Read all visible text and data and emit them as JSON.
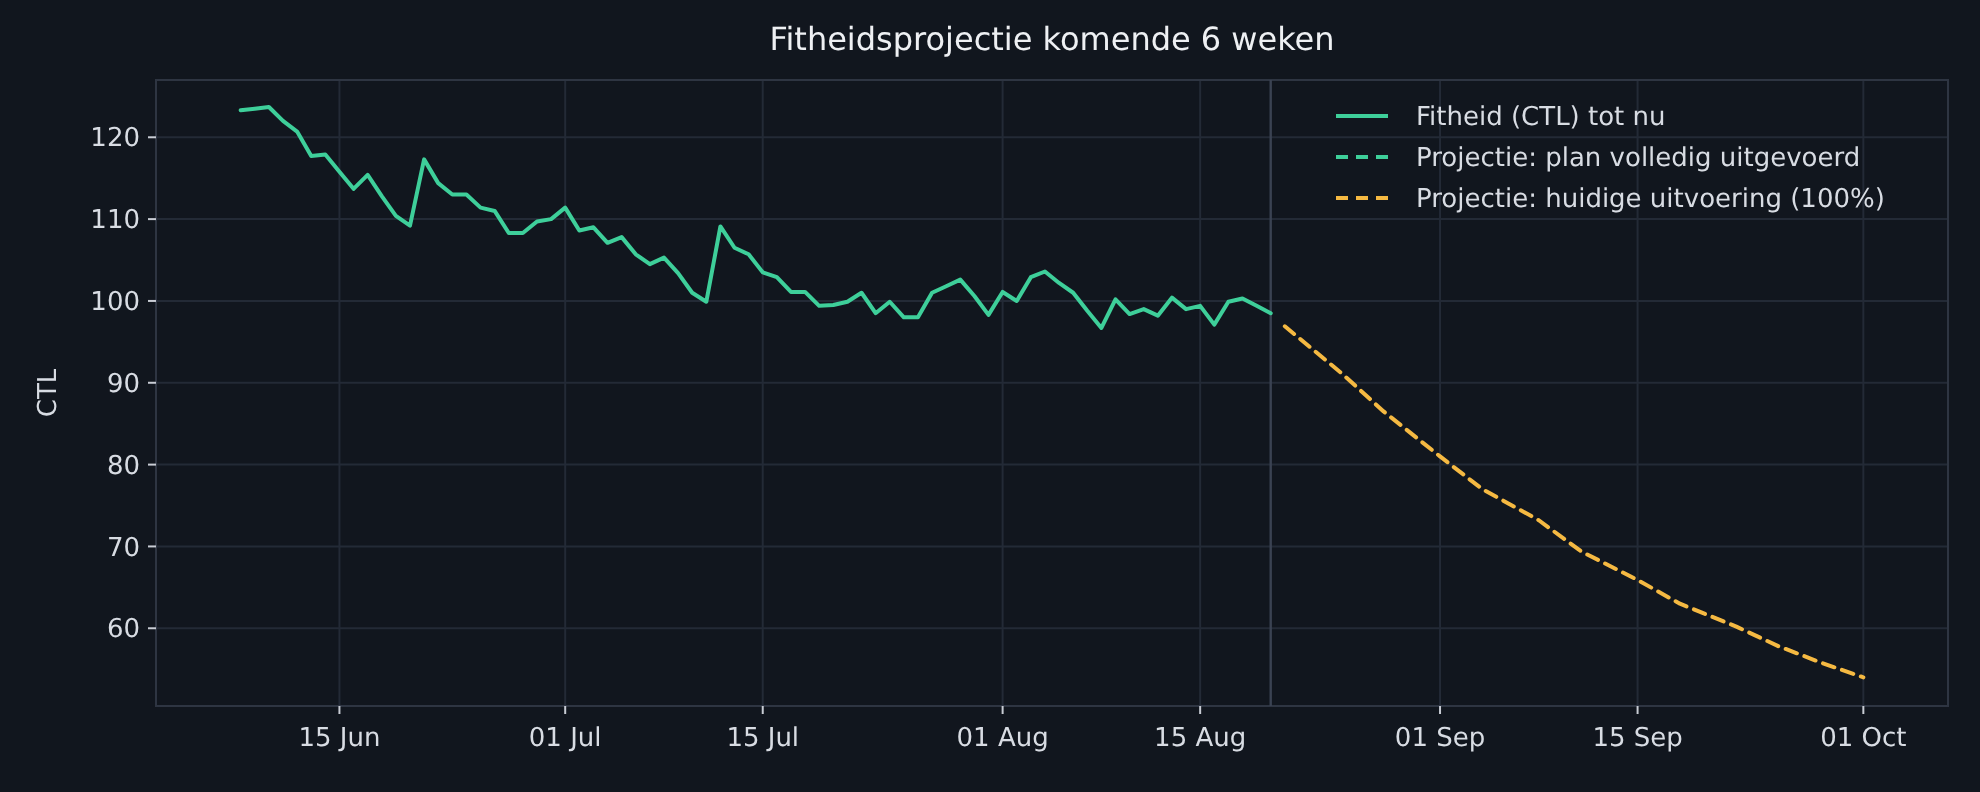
{
  "chart_data": {
    "type": "line",
    "title": "Fitheidsprojectie komende 6 weken",
    "ylabel": "CTL",
    "xlim": [
      "--06-02",
      "--10-07"
    ],
    "ylim": [
      50.5,
      127
    ],
    "yticks": [
      60,
      70,
      80,
      90,
      100,
      110,
      120
    ],
    "xticks": [
      {
        "value": "--06-15",
        "label": "15 Jun"
      },
      {
        "value": "--07-01",
        "label": "01 Jul"
      },
      {
        "value": "--07-15",
        "label": "15 Jul"
      },
      {
        "value": "--08-01",
        "label": "01 Aug"
      },
      {
        "value": "--08-15",
        "label": "15 Aug"
      },
      {
        "value": "--09-01",
        "label": "01 Sep"
      },
      {
        "value": "--09-15",
        "label": "15 Sep"
      },
      {
        "value": "--10-01",
        "label": "01 Oct"
      }
    ],
    "grid": true,
    "legend": "top right",
    "ref_lines": [
      {
        "axis": "x",
        "value": "--08-20",
        "color": "#3a4252"
      }
    ],
    "series": [
      {
        "name": "Fitheid (CTL) tot nu",
        "color": "#3ecf9a",
        "line_style": "solid",
        "x": [
          "--06-08",
          "--06-09",
          "--06-10",
          "--06-11",
          "--06-12",
          "--06-13",
          "--06-14",
          "--06-15",
          "--06-16",
          "--06-17",
          "--06-18",
          "--06-19",
          "--06-20",
          "--06-21",
          "--06-22",
          "--06-23",
          "--06-24",
          "--06-25",
          "--06-26",
          "--06-27",
          "--06-28",
          "--06-29",
          "--06-30",
          "--07-01",
          "--07-02",
          "--07-03",
          "--07-04",
          "--07-05",
          "--07-06",
          "--07-07",
          "--07-08",
          "--07-09",
          "--07-10",
          "--07-11",
          "--07-12",
          "--07-13",
          "--07-14",
          "--07-15",
          "--07-16",
          "--07-17",
          "--07-18",
          "--07-19",
          "--07-20",
          "--07-21",
          "--07-22",
          "--07-23",
          "--07-24",
          "--07-25",
          "--07-26",
          "--07-27",
          "--07-28",
          "--07-29",
          "--07-30",
          "--07-31",
          "--08-01",
          "--08-02",
          "--08-03",
          "--08-04",
          "--08-05",
          "--08-06",
          "--08-07",
          "--08-08",
          "--08-09",
          "--08-10",
          "--08-11",
          "--08-12",
          "--08-13",
          "--08-14",
          "--08-15",
          "--08-16",
          "--08-17",
          "--08-18",
          "--08-19",
          "--08-20"
        ],
        "values": [
          123.3,
          123.5,
          123.7,
          122.0,
          120.7,
          117.7,
          117.9,
          115.8,
          113.7,
          115.4,
          112.8,
          110.4,
          109.2,
          117.3,
          114.4,
          113.0,
          113.0,
          111.4,
          111.0,
          108.3,
          108.3,
          109.7,
          110.0,
          111.4,
          108.6,
          109.0,
          107.1,
          107.8,
          105.7,
          104.5,
          105.3,
          103.4,
          101.0,
          99.9,
          109.1,
          106.5,
          105.7,
          103.5,
          102.9,
          101.1,
          101.1,
          99.4,
          99.5,
          99.9,
          101.0,
          98.5,
          99.9,
          98.0,
          98.0,
          101.0,
          101.8,
          102.6,
          100.6,
          98.3,
          101.1,
          100.0,
          102.9,
          103.6,
          102.2,
          101.0,
          98.8,
          96.7,
          100.2,
          98.4,
          99.0,
          98.2,
          100.4,
          99.0,
          99.4,
          97.1,
          99.9,
          100.3,
          99.4,
          98.5
        ]
      },
      {
        "name": "Projectie: plan volledig uitgevoerd",
        "color": "#3ecf9a",
        "line_style": "dashed"
      },
      {
        "name": "Projectie: huidige uitvoering (100%)",
        "color": "#f5b942",
        "line_style": "dashed",
        "x": [
          "--08-21",
          "--08-25",
          "--08-28",
          "--09-01",
          "--09-04",
          "--09-08",
          "--09-11",
          "--09-15",
          "--09-18",
          "--09-22",
          "--09-25",
          "--09-28",
          "--10-01"
        ],
        "values": [
          96.9,
          91.2,
          86.5,
          81.0,
          77.0,
          73.2,
          69.4,
          65.9,
          63.0,
          60.2,
          57.8,
          55.8,
          54.0
        ]
      }
    ]
  }
}
